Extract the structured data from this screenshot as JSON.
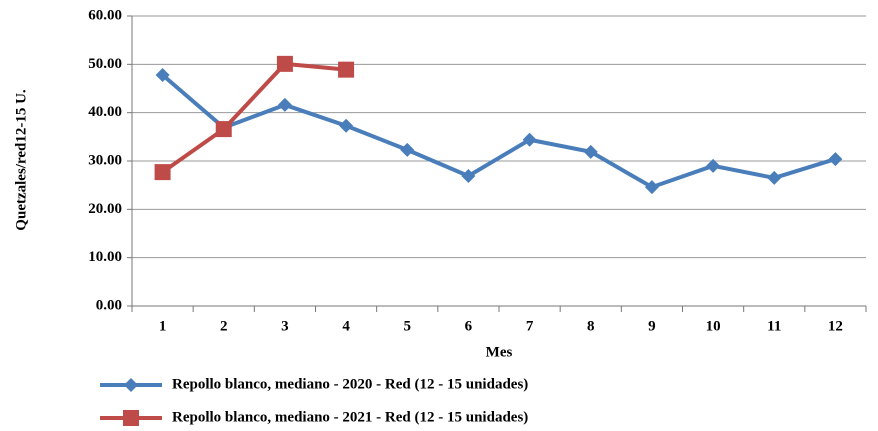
{
  "chart_data": {
    "type": "line",
    "x_label": "Mes",
    "y_label": "Quetzales/red12-15 U.",
    "categories": [
      "1",
      "2",
      "3",
      "4",
      "5",
      "6",
      "7",
      "8",
      "9",
      "10",
      "11",
      "12"
    ],
    "series": [
      {
        "name": "Repollo blanco, mediano - 2020 - Red (12 - 15 unidades)",
        "color": "#4a7ebb",
        "marker": "diamond",
        "values": [
          47.8,
          36.9,
          41.6,
          37.3,
          32.3,
          26.9,
          34.4,
          31.9,
          24.6,
          29.0,
          26.5,
          30.4
        ]
      },
      {
        "name": "Repollo blanco, mediano - 2021 - Red (12 - 15 unidades)",
        "color": "#be4b48",
        "marker": "square",
        "values": [
          27.7,
          36.6,
          50.1,
          48.9,
          null,
          null,
          null,
          null,
          null,
          null,
          null,
          null
        ]
      }
    ],
    "ylim": [
      0,
      60
    ],
    "yticks": [
      {
        "value": 0,
        "label": "0.00"
      },
      {
        "value": 10,
        "label": "10.00"
      },
      {
        "value": 20,
        "label": "20.00"
      },
      {
        "value": 30,
        "label": "30.00"
      },
      {
        "value": 40,
        "label": "40.00"
      },
      {
        "value": 50,
        "label": "50.00"
      },
      {
        "value": 60,
        "label": "60.00"
      }
    ],
    "grid": true,
    "legend": "bottom"
  }
}
